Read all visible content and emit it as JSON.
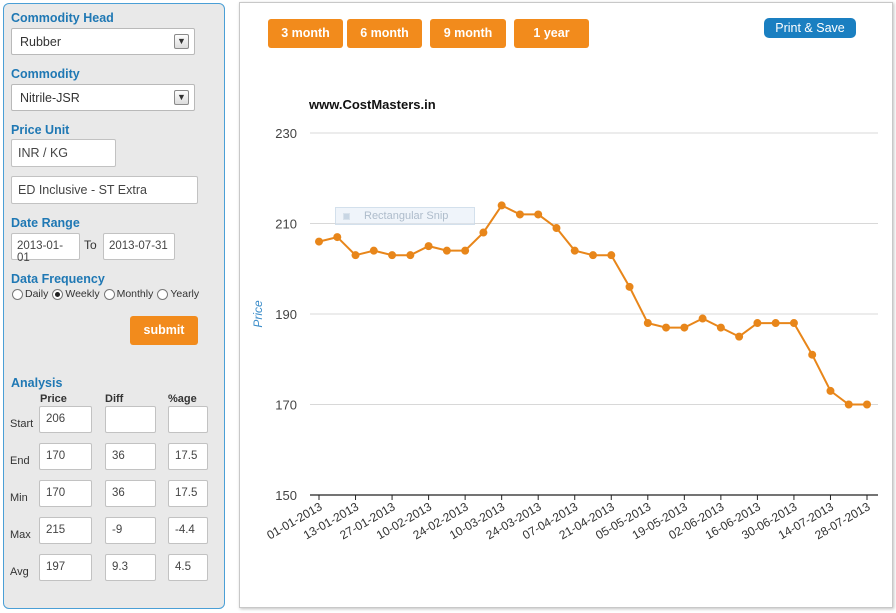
{
  "sidebar": {
    "commodity_head": {
      "label": "Commodity Head",
      "value": "Rubber"
    },
    "commodity": {
      "label": "Commodity",
      "value": "Nitrile-JSR"
    },
    "price_unit": {
      "label": "Price Unit",
      "unit": "INR / KG",
      "tax": "ED Inclusive - ST Extra"
    },
    "date_range": {
      "label": "Date Range",
      "from": "2013-01-01",
      "to_label": "To",
      "to": "2013-07-31"
    },
    "frequency": {
      "label": "Data Frequency",
      "options": [
        "Daily",
        "Weekly",
        "Monthly",
        "Yearly"
      ],
      "selected": "Weekly"
    },
    "submit_label": "submit",
    "analysis": {
      "label": "Analysis",
      "columns": [
        "Price",
        "Diff",
        "%age"
      ],
      "rows": [
        {
          "label": "Start",
          "price": "206",
          "diff": "",
          "pct": ""
        },
        {
          "label": "End",
          "price": "170",
          "diff": "36",
          "pct": "17.5"
        },
        {
          "label": "Min",
          "price": "170",
          "diff": "36",
          "pct": "17.5"
        },
        {
          "label": "Max",
          "price": "215",
          "diff": "-9",
          "pct": "-4.4"
        },
        {
          "label": "Avg",
          "price": "197",
          "diff": "9.3",
          "pct": "4.5"
        }
      ]
    }
  },
  "toolbar": {
    "ranges": [
      "3 month",
      "6 month",
      "9 month",
      "1 year"
    ],
    "print_label": "Print & Save"
  },
  "overlay": {
    "snip_label": "Rectangular Snip"
  },
  "colors": {
    "accent": "#f28b1c",
    "line": "#e8861a",
    "link_blue": "#1a7fc1",
    "label_blue": "#1f78b4"
  },
  "chart_data": {
    "type": "line",
    "title": "www.CostMasters.in",
    "xlabel": "",
    "ylabel": "Price",
    "ylim": [
      150,
      230
    ],
    "yticks": [
      150,
      170,
      190,
      210,
      230
    ],
    "grid": true,
    "legend": "none",
    "x": [
      "01-01-2013",
      "06-01-2013",
      "13-01-2013",
      "20-01-2013",
      "27-01-2013",
      "03-02-2013",
      "10-02-2013",
      "17-02-2013",
      "24-02-2013",
      "03-03-2013",
      "10-03-2013",
      "17-03-2013",
      "24-03-2013",
      "31-03-2013",
      "07-04-2013",
      "14-04-2013",
      "21-04-2013",
      "28-04-2013",
      "05-05-2013",
      "12-05-2013",
      "19-05-2013",
      "26-05-2013",
      "02-06-2013",
      "09-06-2013",
      "16-06-2013",
      "23-06-2013",
      "30-06-2013",
      "07-07-2013",
      "14-07-2013",
      "21-07-2013",
      "28-07-2013"
    ],
    "xtick_labels": [
      "01-01-2013",
      "13-01-2013",
      "27-01-2013",
      "10-02-2013",
      "24-02-2013",
      "10-03-2013",
      "24-03-2013",
      "07-04-2013",
      "21-04-2013",
      "05-05-2013",
      "19-05-2013",
      "02-06-2013",
      "16-06-2013",
      "30-06-2013",
      "14-07-2013",
      "28-07-2013"
    ],
    "series": [
      {
        "values": [
          206,
          207,
          203,
          204,
          203,
          203,
          205,
          204,
          204,
          208,
          214,
          212,
          212,
          209,
          204,
          203,
          203,
          196,
          188,
          187,
          187,
          189,
          187,
          185,
          188,
          188,
          188,
          181,
          173,
          170,
          170
        ]
      }
    ]
  }
}
